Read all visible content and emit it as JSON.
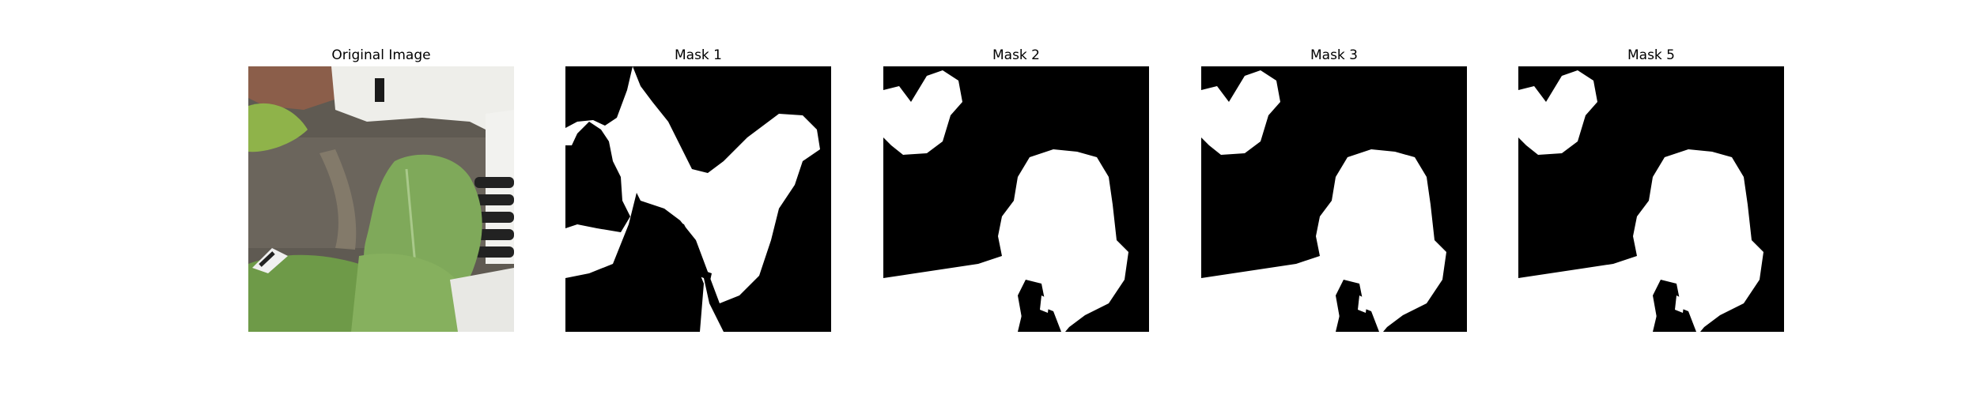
{
  "figure": {
    "panels": [
      {
        "title": "Original Image",
        "kind": "photo",
        "description": "leaf"
      },
      {
        "title": "Mask 1",
        "kind": "mask"
      },
      {
        "title": "Mask 2",
        "kind": "mask"
      },
      {
        "title": "Mask 3",
        "kind": "mask"
      },
      {
        "title": "Mask 5",
        "kind": "mask"
      }
    ],
    "mask_colors": {
      "foreground": "#ffffff",
      "background": "#000000"
    }
  }
}
